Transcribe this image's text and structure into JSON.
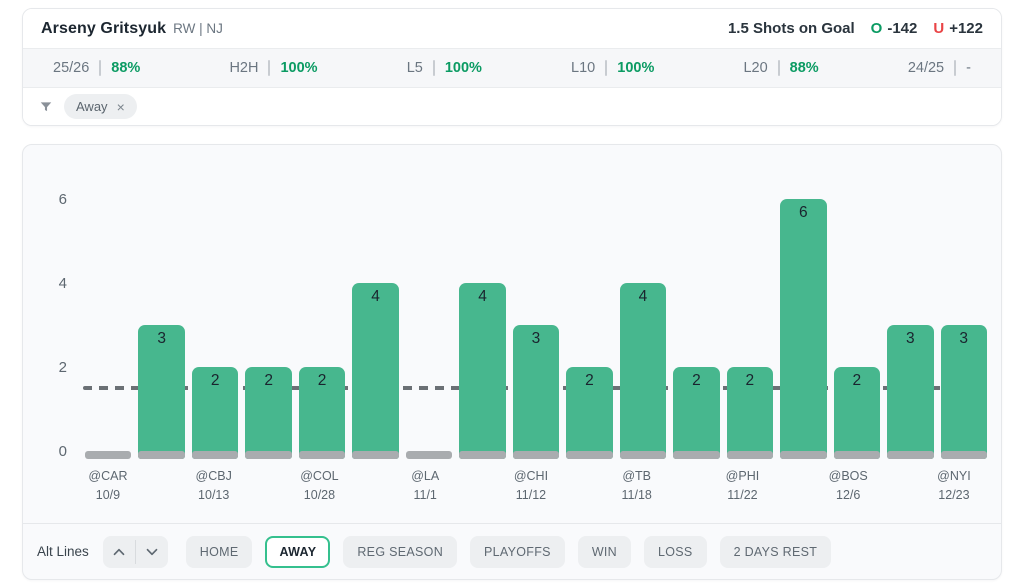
{
  "header": {
    "player_name": "Arseny Gritsyuk",
    "player_meta": "RW | NJ",
    "line_label": "1.5 Shots on Goal",
    "over_label": "O",
    "over_odds": "-142",
    "under_label": "U",
    "under_odds": "+122"
  },
  "stats": [
    {
      "label": "25/26",
      "value": "88%"
    },
    {
      "label": "H2H",
      "value": "100%"
    },
    {
      "label": "L5",
      "value": "100%"
    },
    {
      "label": "L10",
      "value": "100%"
    },
    {
      "label": "L20",
      "value": "88%"
    },
    {
      "label": "24/25",
      "value": "-"
    }
  ],
  "filters": {
    "funnel_icon": "funnel-icon",
    "chips": [
      {
        "label": "Away",
        "close_glyph": "×"
      }
    ]
  },
  "chart_data": {
    "type": "bar",
    "title": "",
    "xlabel": "",
    "ylabel": "",
    "metric": "Shots on Goal",
    "line_value": 1.5,
    "y_ticks": [
      0,
      2,
      4,
      6
    ],
    "ylim": [
      0,
      7
    ],
    "bar_color": "#47b78e",
    "base_color": "#a9acaf",
    "line_color": "#6b7075",
    "categories": [
      "@CAR 10/9",
      "",
      "@CBJ 10/13",
      "",
      "@COL 10/28",
      "",
      "@LA 11/1",
      "",
      "@CHI 11/12",
      "",
      "@TB 11/18",
      "",
      "@PHI 11/22",
      "",
      "@BOS 12/6",
      "",
      "@NYI 12/23"
    ],
    "values": [
      0,
      3,
      2,
      2,
      2,
      4,
      0,
      4,
      3,
      2,
      4,
      2,
      2,
      6,
      2,
      3,
      3
    ],
    "games": [
      {
        "value": 0,
        "label1": "@CAR",
        "label2": "10/9"
      },
      {
        "value": 3
      },
      {
        "value": 2,
        "label1": "@CBJ",
        "label2": "10/13"
      },
      {
        "value": 2
      },
      {
        "value": 2,
        "label1": "@COL",
        "label2": "10/28"
      },
      {
        "value": 4
      },
      {
        "value": 0,
        "label1": "@LA",
        "label2": "11/1"
      },
      {
        "value": 4
      },
      {
        "value": 3,
        "label1": "@CHI",
        "label2": "11/12"
      },
      {
        "value": 2
      },
      {
        "value": 4,
        "label1": "@TB",
        "label2": "11/18"
      },
      {
        "value": 2
      },
      {
        "value": 2,
        "label1": "@PHI",
        "label2": "11/22"
      },
      {
        "value": 6
      },
      {
        "value": 2,
        "label1": "@BOS",
        "label2": "12/6"
      },
      {
        "value": 3
      },
      {
        "value": 3,
        "label1": "@NYI",
        "label2": "12/23"
      }
    ]
  },
  "controls": {
    "alt_lines_label": "Alt Lines",
    "stepper": {
      "up_icon": "chevron-up-icon",
      "down_icon": "chevron-down-icon"
    },
    "buttons": [
      {
        "label": "HOME",
        "selected": false
      },
      {
        "label": "AWAY",
        "selected": true
      },
      {
        "label": "REG SEASON",
        "selected": false
      },
      {
        "label": "PLAYOFFS",
        "selected": false
      },
      {
        "label": "WIN",
        "selected": false
      },
      {
        "label": "LOSS",
        "selected": false
      },
      {
        "label": "2 DAYS REST",
        "selected": false
      }
    ]
  },
  "colors": {
    "accent_green": "#0b9b63",
    "accent_red": "#e94446",
    "bar_green": "#47b78e",
    "base_gray": "#a9acaf",
    "selected_border": "#35c08e"
  }
}
